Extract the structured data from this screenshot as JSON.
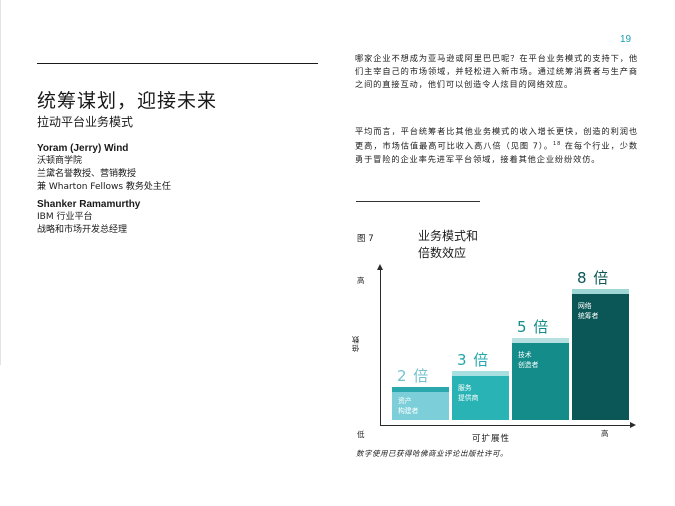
{
  "page_number": "19",
  "title": "统筹谋划，迎接未来",
  "subtitle": "拉动平台业务模式",
  "authors": [
    {
      "name": "Yoram (Jerry) Wind",
      "lines": [
        "沃顿商学院",
        "兰黛名誉教授、营销教授",
        "兼 Wharton Fellows 教务处主任"
      ]
    },
    {
      "name": "Shanker Ramamurthy",
      "lines": [
        "IBM 行业平台",
        "战略和市场开发总经理"
      ]
    }
  ],
  "body": {
    "para1": "哪家企业不想成为亚马逊或阿里巴巴呢？在平台业务模式的支持下，他们主宰自己的市场领域，并轻松进入新市场。通过统筹消费者与生产商之间的直接互动，他们可以创造令人炫目的网络效应。",
    "para2_before": "平均而言，平台统筹者比其他业务模式的收入增长更快，创造的利润也更高，市场估值最高可比收入高八倍（见图 7）。",
    "para2_sup": "18",
    "para2_after": " 在每个行业，少数勇于冒险的企业率先进军平台领域，接着其他企业纷纷效仿。"
  },
  "figure": {
    "label": "图 7",
    "title_line1": "业务模式和",
    "title_line2": "倍数效应",
    "caption": "数字使用已获得哈佛商业评论出版社许可。"
  },
  "chart_data": {
    "type": "bar",
    "title": "业务模式和倍数效应",
    "xlabel": "可扩展性",
    "ylabel": "倍数",
    "y_high": "高",
    "y_low": "低",
    "x_high": "高",
    "categories": [
      "资产构建者",
      "服务提供商",
      "技术创造者",
      "网络统筹者"
    ],
    "values": [
      2,
      3,
      5,
      8
    ],
    "value_labels": [
      "2 倍",
      "3 倍",
      "5 倍",
      "8 倍"
    ],
    "bar_label_lines": [
      [
        "资产",
        "构建者"
      ],
      [
        "服务",
        "提供商"
      ],
      [
        "技术",
        "创造者"
      ],
      [
        "网络",
        "统筹者"
      ]
    ],
    "colors": {
      "bars": [
        "#7ccfd9",
        "#29b3b4",
        "#138c8a",
        "#0b5757"
      ],
      "caps": [
        "#2aa8ad",
        "#a8dfe0",
        "#b6e0df",
        "#9fd7d7"
      ],
      "value_text": [
        "#74c2ce",
        "#23a7ac",
        "#138c8a",
        "#0b5757"
      ]
    }
  }
}
